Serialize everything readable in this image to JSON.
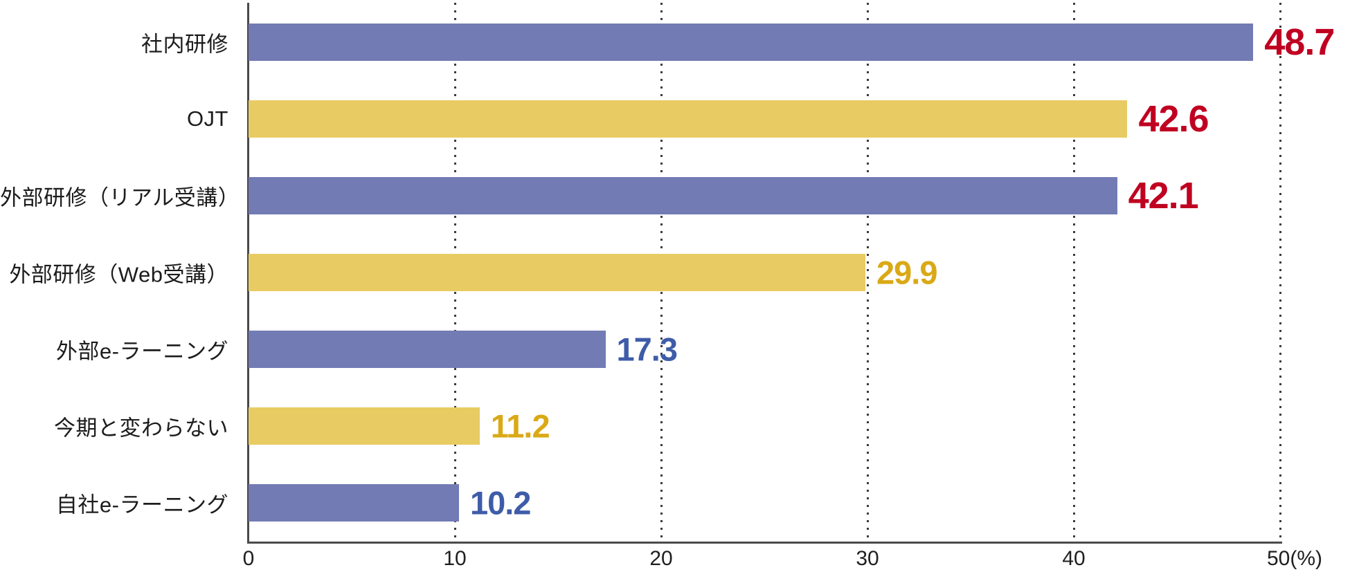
{
  "chart_data": {
    "type": "bar",
    "orientation": "horizontal",
    "categories": [
      "社内研修",
      "OJT",
      "外部研修（リアル受講）",
      "外部研修（Web受講）",
      "外部e-ラーニング",
      "今期と変わらない",
      "自社e-ラーニング"
    ],
    "values": [
      48.7,
      42.6,
      42.1,
      29.9,
      17.3,
      11.2,
      10.2
    ],
    "value_labels": [
      "48.7",
      "42.6",
      "42.1",
      "29.9",
      "17.3",
      "11.2",
      "10.2"
    ],
    "xlim": [
      0,
      50
    ],
    "x_ticks": [
      0,
      10,
      20,
      30,
      40,
      50
    ],
    "x_tick_labels": [
      "0",
      "10",
      "20",
      "30",
      "40",
      "50"
    ],
    "x_axis_unit": "(%)",
    "grid": "dotted-vertical",
    "legend": "none",
    "bar_colors": [
      "#727BB4",
      "#E9CB63",
      "#727BB4",
      "#E9CB63",
      "#727BB4",
      "#E9CB63",
      "#727BB4"
    ],
    "value_colors": [
      "#C00021",
      "#C00021",
      "#C00021",
      "#DAA917",
      "#3E5CA8",
      "#DAA917",
      "#3E5CA8"
    ],
    "value_emphasis": [
      true,
      true,
      true,
      false,
      false,
      false,
      false
    ]
  },
  "colors": {
    "axis": "#4A4A4A",
    "gridline": "#3A3A3A",
    "category_label": "#1C1C1C",
    "tick_label": "#1F1F1F",
    "background": "#FFFFFF"
  }
}
